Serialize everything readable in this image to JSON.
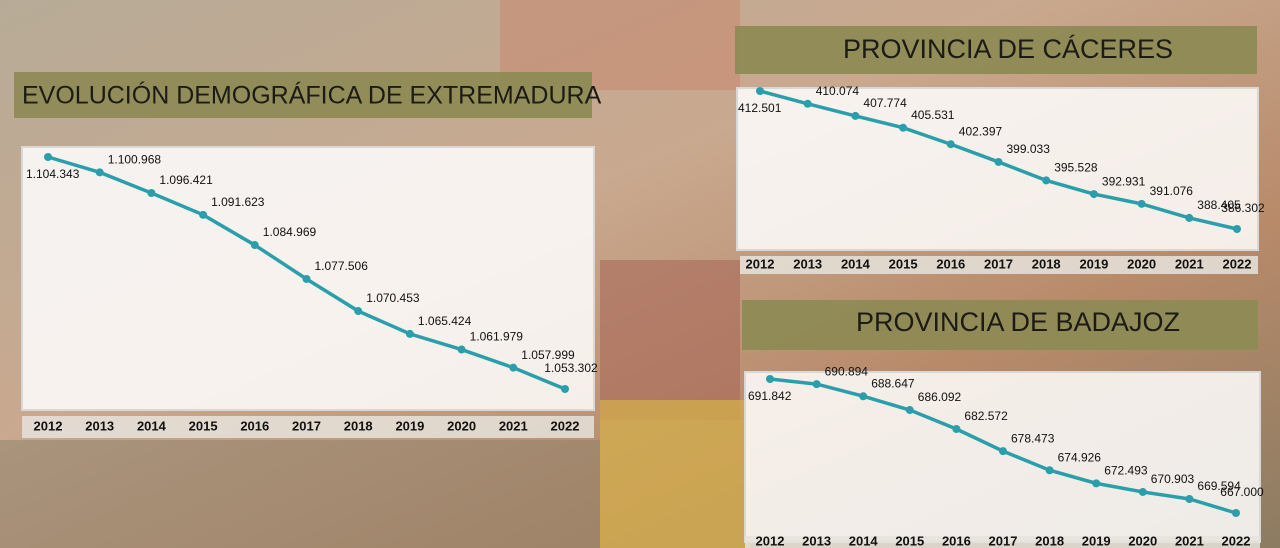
{
  "chart_data": [
    {
      "type": "line",
      "title": "EVOLUCIÓN DEMOGRÁFICA DE EXTREMADURA",
      "categories": [
        "2012",
        "2013",
        "2014",
        "2015",
        "2016",
        "2017",
        "2018",
        "2019",
        "2020",
        "2021",
        "2022"
      ],
      "series": [
        {
          "color": "#2a9fab",
          "values": [
            1104343,
            1100968,
            1096421,
            1091623,
            1084969,
            1077506,
            1070453,
            1065424,
            1061979,
            1057999,
            1053302
          ],
          "value_labels": [
            "1.104.343",
            "1.100.968",
            "1.096.421",
            "1.091.623",
            "1.084.969",
            "1.077.506",
            "1.070.453",
            "1.065.424",
            "1.061.979",
            "1.057.999",
            "1.053.302"
          ]
        }
      ]
    },
    {
      "type": "line",
      "title": "PROVINCIA DE CÁCERES",
      "categories": [
        "2012",
        "2013",
        "2014",
        "2015",
        "2016",
        "2017",
        "2018",
        "2019",
        "2020",
        "2021",
        "2022"
      ],
      "series": [
        {
          "color": "#2a9fab",
          "values": [
            412501,
            410074,
            407774,
            405531,
            402397,
            399033,
            395528,
            392931,
            391076,
            388405,
            386302
          ],
          "value_labels": [
            "412.501",
            "410.074",
            "407.774",
            "405.531",
            "402.397",
            "399.033",
            "395.528",
            "392.931",
            "391.076",
            "388.405",
            "386.302"
          ]
        }
      ]
    },
    {
      "type": "line",
      "title": "PROVINCIA DE BADAJOZ",
      "categories": [
        "2012",
        "2013",
        "2014",
        "2015",
        "2016",
        "2017",
        "2018",
        "2019",
        "2020",
        "2021",
        "2022"
      ],
      "series": [
        {
          "color": "#2a9fab",
          "values": [
            691842,
            690894,
            688647,
            686092,
            682572,
            678473,
            674926,
            672493,
            670903,
            669594,
            667000
          ],
          "value_labels": [
            "691.842",
            "690.894",
            "688.647",
            "686.092",
            "682.572",
            "678.473",
            "674.926",
            "672.493",
            "670.903",
            "669.594",
            "667.000"
          ]
        }
      ]
    }
  ]
}
